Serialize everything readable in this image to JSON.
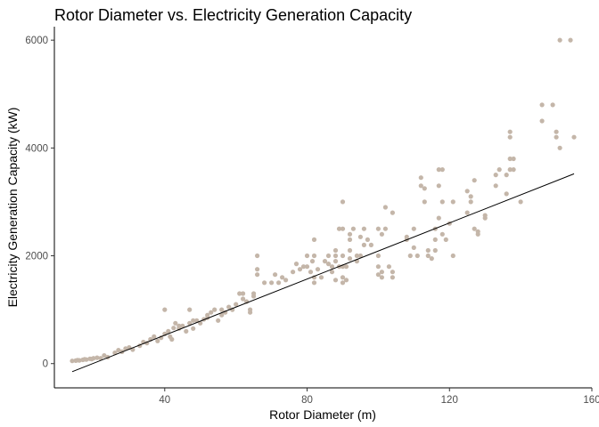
{
  "chart_data": {
    "type": "scatter",
    "title": "Rotor Diameter vs. Electricity Generation Capacity",
    "xlabel": "Rotor Diameter (m)",
    "ylabel": "Electricity Generation Capacity (kW)",
    "xlim": [
      9,
      160
    ],
    "ylim": [
      -450,
      6250
    ],
    "x_ticks": [
      40,
      80,
      120,
      160
    ],
    "y_ticks": [
      0,
      2000,
      4000,
      6000
    ],
    "grid": false,
    "legend": "none",
    "point_color": "#c4b6a9",
    "line_color": "#000000",
    "trend_line": {
      "x": [
        14,
        155
      ],
      "y": [
        -150,
        3520
      ]
    },
    "points": [
      [
        14,
        50
      ],
      [
        15,
        55
      ],
      [
        15.5,
        65
      ],
      [
        16,
        60
      ],
      [
        17,
        70
      ],
      [
        17.5,
        80
      ],
      [
        18,
        75
      ],
      [
        19,
        90
      ],
      [
        19.5,
        85
      ],
      [
        20,
        100
      ],
      [
        21,
        110
      ],
      [
        22,
        100
      ],
      [
        23,
        150
      ],
      [
        24,
        120
      ],
      [
        26,
        200
      ],
      [
        27,
        250
      ],
      [
        28,
        220
      ],
      [
        29,
        280
      ],
      [
        30,
        300
      ],
      [
        31,
        260
      ],
      [
        33,
        330
      ],
      [
        34,
        400
      ],
      [
        35,
        380
      ],
      [
        36,
        450
      ],
      [
        37,
        500
      ],
      [
        38,
        420
      ],
      [
        39,
        480
      ],
      [
        40,
        1000
      ],
      [
        40,
        550
      ],
      [
        41,
        600
      ],
      [
        41.5,
        500
      ],
      [
        42,
        450
      ],
      [
        42.5,
        660
      ],
      [
        43,
        750
      ],
      [
        44,
        650
      ],
      [
        44,
        700
      ],
      [
        45,
        700
      ],
      [
        46,
        600
      ],
      [
        47,
        1000
      ],
      [
        47,
        750
      ],
      [
        48,
        800
      ],
      [
        48,
        650
      ],
      [
        49,
        800
      ],
      [
        50,
        750
      ],
      [
        51,
        820
      ],
      [
        52,
        900
      ],
      [
        52,
        850
      ],
      [
        53,
        950
      ],
      [
        54,
        1000
      ],
      [
        55,
        800
      ],
      [
        56,
        900
      ],
      [
        56,
        1000
      ],
      [
        57,
        950
      ],
      [
        58,
        1050
      ],
      [
        59,
        1000
      ],
      [
        60,
        1100
      ],
      [
        61,
        1300
      ],
      [
        62,
        1200
      ],
      [
        62,
        1300
      ],
      [
        63,
        1150
      ],
      [
        64,
        1000
      ],
      [
        64,
        950
      ],
      [
        65,
        1250
      ],
      [
        65,
        1300
      ],
      [
        66,
        1650
      ],
      [
        66,
        1750
      ],
      [
        66,
        2000
      ],
      [
        68,
        1500
      ],
      [
        70,
        1500
      ],
      [
        71,
        1650
      ],
      [
        72,
        1500
      ],
      [
        73,
        1600
      ],
      [
        74,
        1550
      ],
      [
        76,
        1700
      ],
      [
        77,
        1850
      ],
      [
        78,
        1750
      ],
      [
        79,
        1800
      ],
      [
        80,
        2000
      ],
      [
        80,
        1800
      ],
      [
        81,
        1700
      ],
      [
        81.5,
        1900
      ],
      [
        82,
        2300
      ],
      [
        82,
        2000
      ],
      [
        82,
        1600
      ],
      [
        82,
        1500
      ],
      [
        83,
        1750
      ],
      [
        84,
        1600
      ],
      [
        85,
        1900
      ],
      [
        86,
        2000
      ],
      [
        86,
        1850
      ],
      [
        87,
        1800
      ],
      [
        87,
        1700
      ],
      [
        88,
        1550
      ],
      [
        88,
        1900
      ],
      [
        88,
        2100
      ],
      [
        88,
        2000
      ],
      [
        89,
        2500
      ],
      [
        89,
        1800
      ],
      [
        90,
        3000
      ],
      [
        90,
        2500
      ],
      [
        90,
        2000
      ],
      [
        90,
        1800
      ],
      [
        90,
        1600
      ],
      [
        90,
        1500
      ],
      [
        91,
        1550
      ],
      [
        91,
        1800
      ],
      [
        92,
        2100
      ],
      [
        92,
        2300
      ],
      [
        92,
        2400
      ],
      [
        92,
        1950
      ],
      [
        93,
        2500
      ],
      [
        94,
        2000
      ],
      [
        94,
        1900
      ],
      [
        95,
        2350
      ],
      [
        95,
        2000
      ],
      [
        96,
        2500
      ],
      [
        96,
        2200
      ],
      [
        97,
        2300
      ],
      [
        98,
        2200
      ],
      [
        100,
        2500
      ],
      [
        100,
        2000
      ],
      [
        100,
        1800
      ],
      [
        100,
        1650
      ],
      [
        101,
        1700
      ],
      [
        101,
        1600
      ],
      [
        101,
        2400
      ],
      [
        102,
        2900
      ],
      [
        102,
        2500
      ],
      [
        103,
        1800
      ],
      [
        104,
        1700
      ],
      [
        104,
        1600
      ],
      [
        104,
        2800
      ],
      [
        108,
        2350
      ],
      [
        108,
        2300
      ],
      [
        109,
        2000
      ],
      [
        110,
        2500
      ],
      [
        110,
        2150
      ],
      [
        111,
        2000
      ],
      [
        112,
        3450
      ],
      [
        112,
        3300
      ],
      [
        113,
        3000
      ],
      [
        113,
        3250
      ],
      [
        114,
        2000
      ],
      [
        114,
        2100
      ],
      [
        115,
        1950
      ],
      [
        116,
        2100
      ],
      [
        116,
        2300
      ],
      [
        116,
        2500
      ],
      [
        117,
        3600
      ],
      [
        117,
        3300
      ],
      [
        117,
        2700
      ],
      [
        118,
        3600
      ],
      [
        118,
        3000
      ],
      [
        118,
        2400
      ],
      [
        119,
        2300
      ],
      [
        120,
        2600
      ],
      [
        121,
        2000
      ],
      [
        121,
        3000
      ],
      [
        125,
        2800
      ],
      [
        125,
        3200
      ],
      [
        126,
        3000
      ],
      [
        126,
        3100
      ],
      [
        127,
        3400
      ],
      [
        127,
        2500
      ],
      [
        128,
        2400
      ],
      [
        128,
        2450
      ],
      [
        130,
        2700
      ],
      [
        130,
        2750
      ],
      [
        133,
        3500
      ],
      [
        133,
        3300
      ],
      [
        134,
        3600
      ],
      [
        136,
        3150
      ],
      [
        136,
        3500
      ],
      [
        137,
        4300
      ],
      [
        137,
        4200
      ],
      [
        137,
        3800
      ],
      [
        137,
        3600
      ],
      [
        138,
        3800
      ],
      [
        138,
        3600
      ],
      [
        140,
        3000
      ],
      [
        146,
        4800
      ],
      [
        146,
        4500
      ],
      [
        149,
        4800
      ],
      [
        150,
        4300
      ],
      [
        150,
        4200
      ],
      [
        151,
        4000
      ],
      [
        151,
        6000
      ],
      [
        154,
        6000
      ],
      [
        155,
        4200
      ]
    ]
  }
}
